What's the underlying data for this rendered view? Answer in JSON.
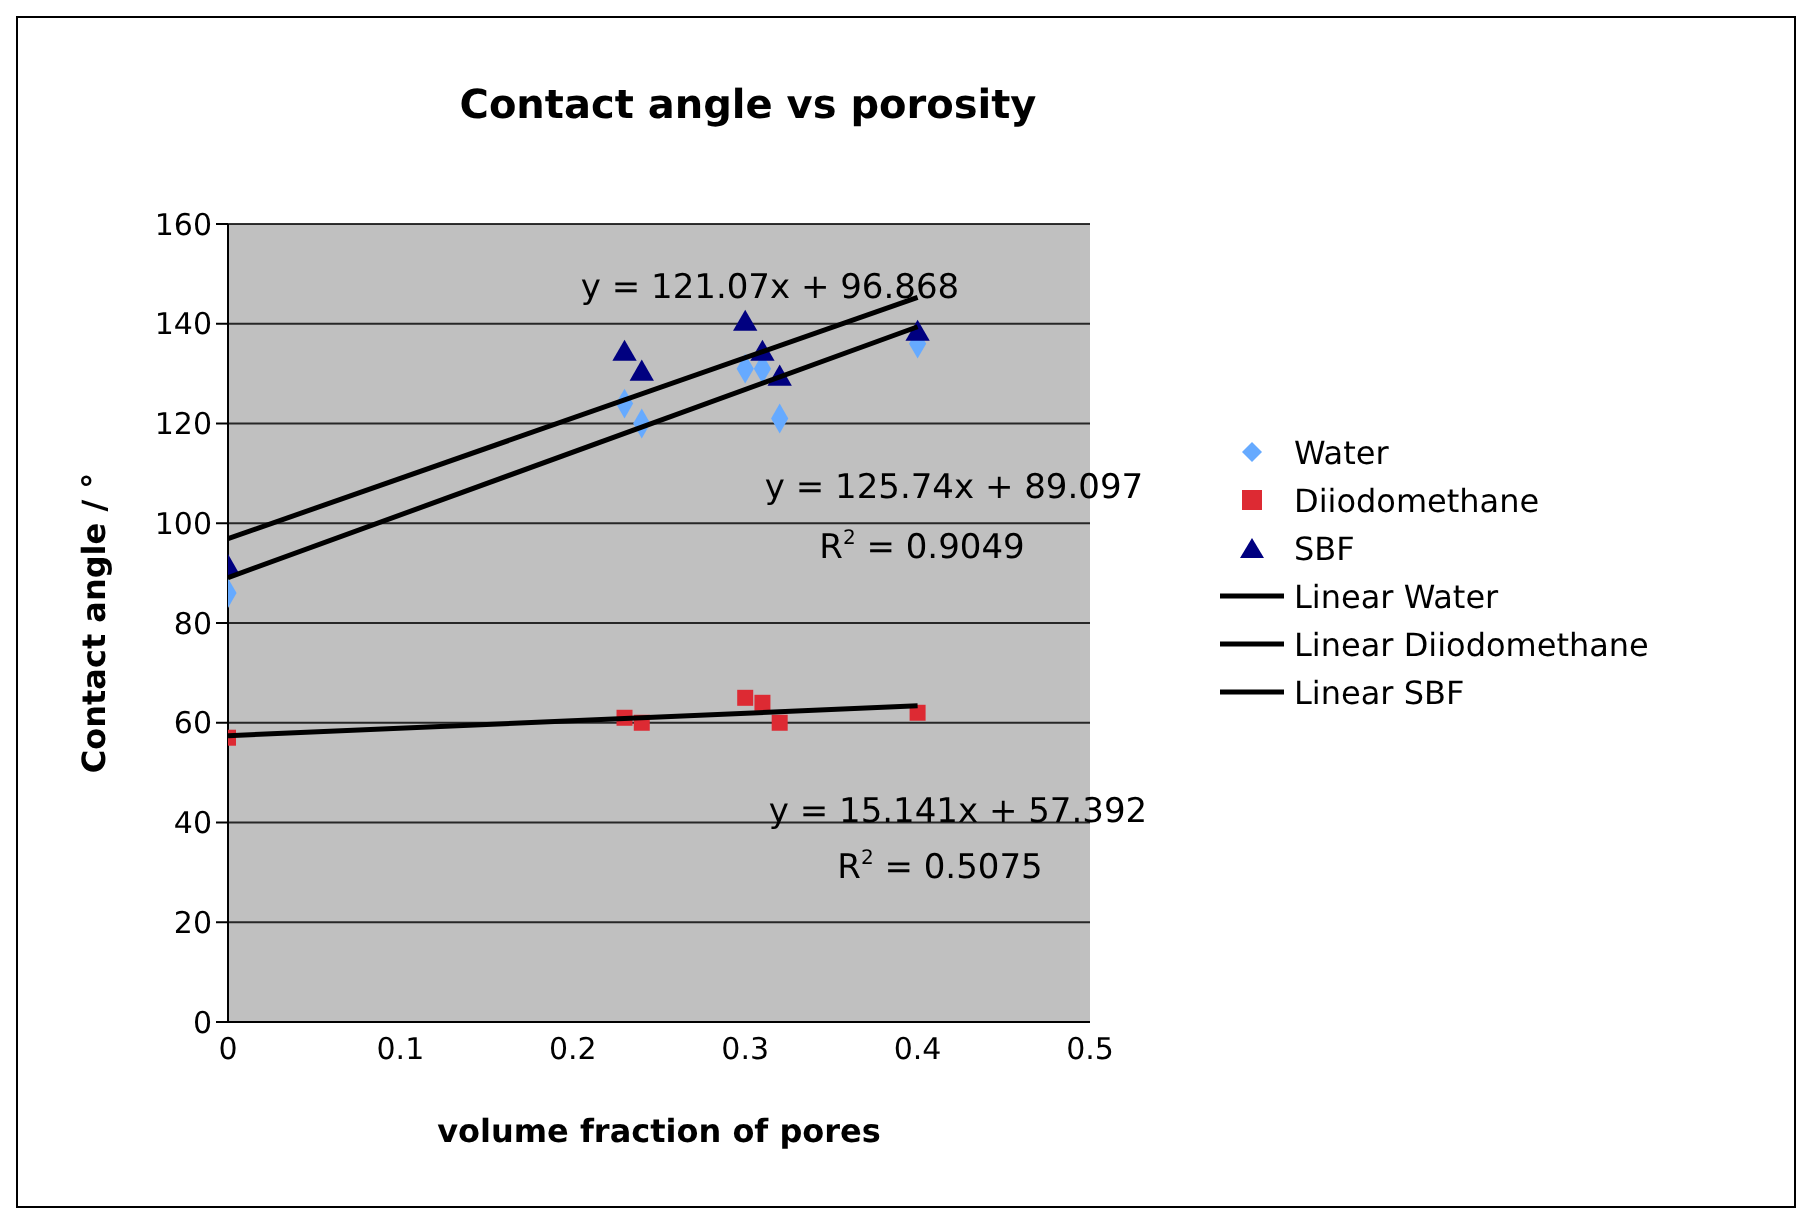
{
  "chart_data": {
    "type": "scatter",
    "title": "Contact angle vs porosity",
    "xlabel": "volume fraction of pores",
    "ylabel": "Contact angle / °",
    "xlim": [
      0,
      0.5
    ],
    "xticks": [
      0,
      0.1,
      0.2,
      0.3,
      0.4,
      0.5
    ],
    "ylim": [
      0,
      160
    ],
    "yticks": [
      0,
      20,
      40,
      60,
      80,
      100,
      120,
      140,
      160
    ],
    "grid": "y",
    "legend": "right",
    "series": [
      {
        "name": "Water",
        "color": "#66aaff",
        "marker": "diamond",
        "x": [
          0,
          0.23,
          0.24,
          0.3,
          0.31,
          0.32,
          0.4
        ],
        "values": [
          86,
          124,
          120,
          131,
          131,
          121,
          136
        ]
      },
      {
        "name": "Diiodomethane",
        "color": "#dd2a33",
        "marker": "square",
        "x": [
          0,
          0.23,
          0.24,
          0.3,
          0.31,
          0.32,
          0.4
        ],
        "values": [
          57,
          61,
          60,
          65,
          64,
          60,
          62
        ]
      },
      {
        "name": "SBF",
        "color": "#000080",
        "marker": "triangle",
        "x": [
          0,
          0.23,
          0.24,
          0.3,
          0.31,
          0.32,
          0.4
        ],
        "values": [
          91,
          134,
          130,
          140,
          134,
          129,
          138
        ]
      },
      {
        "name": "Linear Water",
        "type": "line",
        "color": "#000000",
        "marker": "none",
        "x": [
          0,
          0.4
        ],
        "values": [
          89.1,
          139.4
        ]
      },
      {
        "name": "Linear Diiodomethane",
        "type": "line",
        "color": "#000000",
        "marker": "none",
        "x": [
          0,
          0.4
        ],
        "values": [
          57.4,
          63.4
        ]
      },
      {
        "name": "Linear SBF",
        "type": "line",
        "color": "#000000",
        "marker": "none",
        "x": [
          0,
          0.4
        ],
        "values": [
          96.9,
          145.3
        ]
      }
    ],
    "annotations": [
      "y = 121.07x + 96.868",
      "y = 125.74x + 89.097",
      "R$^{2}$ = 0.9049",
      "y = 15.141x + 57.392",
      "R$^{2}$ = 0.5075"
    ]
  }
}
